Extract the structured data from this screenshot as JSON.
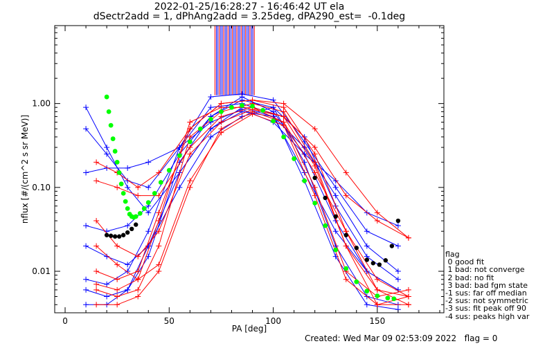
{
  "header": {
    "title_line1": "2022-01-25/16:28:27 - 16:46:42 UT ela",
    "title_line2": "dSectr2add = 1, dPhAng2add = 3.25deg, dPA290_est=  -0.1deg"
  },
  "legend": {
    "heading": "flag",
    "items": [
      " 0 good fit",
      " 1 bad: not converge",
      " 2 bad: no fit",
      " 3 bad: bad fgm state",
      "-1 sus: far off median",
      "-2 sus: not symmetric",
      "-3 sus: fit peak off 90",
      "-4 sus: peaks high var"
    ]
  },
  "footer": {
    "created": "Created: Wed Mar 09 02:53:09 2022",
    "flag": "flag = 0"
  },
  "colors": {
    "series_red": "#ff0000",
    "series_blue": "#0000ff",
    "fit_green": "#00ff00",
    "fit_black": "#000000"
  },
  "chart_data": {
    "type": "line",
    "xlabel": "PA [deg]",
    "ylabel": "nflux [#/(cm^2 s sr MeV)]",
    "xlim": [
      -5,
      182
    ],
    "ylim": [
      0.0032,
      8.5
    ],
    "yscale": "log",
    "xticks": [
      0,
      50,
      100,
      150
    ],
    "xtick_labels": [
      "0",
      "50",
      "100",
      "150"
    ],
    "yticks": [
      0.01,
      0.1,
      1.0
    ],
    "ytick_labels": [
      "0.01",
      "0.10",
      "1.00"
    ],
    "shaded_pa_range": [
      72,
      91
    ],
    "series": [
      {
        "color": "blue",
        "x": [
          10,
          20,
          30,
          40,
          55,
          70,
          85,
          100,
          115,
          130,
          145,
          160
        ],
        "y": [
          0.15,
          0.17,
          0.17,
          0.2,
          0.3,
          0.6,
          0.85,
          0.6,
          0.25,
          0.12,
          0.05,
          0.035
        ]
      },
      {
        "color": "blue",
        "x": [
          10,
          20,
          30,
          40,
          55,
          70,
          85,
          100,
          115,
          130,
          145,
          160
        ],
        "y": [
          0.02,
          0.015,
          0.012,
          0.02,
          0.15,
          0.5,
          0.9,
          0.7,
          0.15,
          0.03,
          0.01,
          0.006
        ]
      },
      {
        "color": "blue",
        "x": [
          10,
          20,
          30,
          40,
          55,
          70,
          85,
          100,
          115,
          130,
          145,
          160
        ],
        "y": [
          0.006,
          0.005,
          0.006,
          0.015,
          0.2,
          0.7,
          1.1,
          0.9,
          0.2,
          0.02,
          0.005,
          0.004
        ]
      },
      {
        "color": "blue",
        "x": [
          10,
          20,
          30,
          40,
          55,
          70,
          85,
          100,
          115,
          130,
          145,
          160
        ],
        "y": [
          0.9,
          0.3,
          0.1,
          0.05,
          0.15,
          0.5,
          0.8,
          0.7,
          0.3,
          0.08,
          0.02,
          0.01
        ]
      },
      {
        "color": "blue",
        "x": [
          10,
          20,
          30,
          40,
          55,
          70,
          85,
          100,
          115,
          130,
          145,
          160
        ],
        "y": [
          0.035,
          0.03,
          0.035,
          0.06,
          0.25,
          0.7,
          1.2,
          0.8,
          0.25,
          0.04,
          0.01,
          0.006
        ]
      },
      {
        "color": "blue",
        "x": [
          10,
          20,
          30,
          40,
          55,
          70,
          85,
          100,
          115,
          130,
          145,
          160
        ],
        "y": [
          0.008,
          0.007,
          0.01,
          0.03,
          0.3,
          0.9,
          1.0,
          0.75,
          0.12,
          0.015,
          0.004,
          0.0035
        ]
      },
      {
        "color": "blue",
        "x": [
          10,
          20,
          30,
          40,
          55,
          70,
          85,
          100,
          115,
          130,
          145,
          160
        ],
        "y": [
          0.004,
          0.004,
          0.006,
          0.02,
          0.1,
          0.4,
          0.7,
          0.9,
          0.4,
          0.06,
          0.015,
          0.008
        ]
      },
      {
        "color": "blue",
        "x": [
          10,
          20,
          30,
          40,
          55,
          70,
          85,
          100,
          115,
          130,
          145,
          160
        ],
        "y": [
          0.5,
          0.25,
          0.12,
          0.1,
          0.3,
          1.2,
          1.3,
          1.1,
          0.35,
          0.1,
          0.03,
          0.02
        ]
      },
      {
        "color": "red",
        "x": [
          15,
          25,
          35,
          45,
          60,
          75,
          90,
          105,
          120,
          135,
          150,
          165
        ],
        "y": [
          0.12,
          0.1,
          0.08,
          0.08,
          0.3,
          0.7,
          0.9,
          0.6,
          0.15,
          0.03,
          0.008,
          0.005
        ]
      },
      {
        "color": "red",
        "x": [
          15,
          25,
          35,
          45,
          60,
          75,
          90,
          105,
          120,
          135,
          150,
          165
        ],
        "y": [
          0.006,
          0.005,
          0.006,
          0.02,
          0.4,
          0.8,
          1.0,
          0.8,
          0.2,
          0.02,
          0.004,
          0.004
        ]
      },
      {
        "color": "red",
        "x": [
          15,
          25,
          35,
          45,
          60,
          75,
          90,
          105,
          120,
          135,
          150,
          165
        ],
        "y": [
          0.04,
          0.02,
          0.015,
          0.03,
          0.25,
          0.6,
          0.85,
          0.7,
          0.3,
          0.08,
          0.04,
          0.025
        ]
      },
      {
        "color": "red",
        "x": [
          15,
          25,
          35,
          45,
          60,
          75,
          90,
          105,
          120,
          135,
          150,
          165
        ],
        "y": [
          0.01,
          0.008,
          0.01,
          0.05,
          0.5,
          1.0,
          1.1,
          0.9,
          0.25,
          0.03,
          0.006,
          0.004
        ]
      },
      {
        "color": "red",
        "x": [
          15,
          25,
          35,
          45,
          60,
          75,
          90,
          105,
          120,
          135,
          150,
          165
        ],
        "y": [
          0.004,
          0.004,
          0.005,
          0.01,
          0.1,
          0.5,
          0.8,
          0.6,
          0.1,
          0.01,
          0.005,
          0.006
        ]
      },
      {
        "color": "red",
        "x": [
          15,
          25,
          35,
          45,
          60,
          75,
          90,
          105,
          120,
          135,
          150,
          165
        ],
        "y": [
          0.2,
          0.15,
          0.1,
          0.15,
          0.5,
          1.0,
          1.1,
          1.0,
          0.5,
          0.15,
          0.05,
          0.025
        ]
      },
      {
        "color": "red",
        "x": [
          15,
          25,
          35,
          45,
          60,
          75,
          90,
          105,
          120,
          135,
          150,
          165
        ],
        "y": [
          0.02,
          0.012,
          0.008,
          0.012,
          0.12,
          0.45,
          0.75,
          0.55,
          0.08,
          0.008,
          0.004,
          0.005
        ]
      },
      {
        "color": "red",
        "x": [
          15,
          25,
          35,
          45,
          60,
          75,
          90,
          105,
          120,
          135,
          150,
          165
        ],
        "y": [
          0.007,
          0.006,
          0.008,
          0.04,
          0.6,
          0.9,
          0.9,
          0.7,
          0.18,
          0.02,
          0.006,
          0.005
        ]
      }
    ],
    "fit_black": {
      "x": [
        20,
        22,
        24,
        26,
        28,
        30,
        32,
        34,
        120,
        125,
        130,
        135,
        140,
        145,
        148,
        151,
        154,
        157,
        160
      ],
      "y": [
        0.027,
        0.0265,
        0.026,
        0.026,
        0.027,
        0.029,
        0.032,
        0.036,
        0.13,
        0.075,
        0.045,
        0.027,
        0.019,
        0.0137,
        0.0125,
        0.012,
        0.0135,
        0.02,
        0.04
      ]
    },
    "fit_green": {
      "x": [
        20,
        21,
        22,
        23,
        24,
        25,
        26,
        27,
        28,
        29,
        30,
        31,
        32,
        33,
        34,
        36,
        38,
        40,
        43,
        46,
        50,
        55,
        60,
        65,
        70,
        75,
        80,
        85,
        90,
        95,
        100,
        105,
        110,
        115,
        120,
        125,
        130,
        135,
        140,
        145,
        150,
        155,
        158
      ],
      "y": [
        1.2,
        0.8,
        0.55,
        0.38,
        0.27,
        0.2,
        0.15,
        0.11,
        0.085,
        0.068,
        0.056,
        0.048,
        0.045,
        0.044,
        0.045,
        0.049,
        0.056,
        0.066,
        0.085,
        0.115,
        0.16,
        0.24,
        0.35,
        0.5,
        0.65,
        0.8,
        0.9,
        0.95,
        0.93,
        0.83,
        0.62,
        0.4,
        0.22,
        0.12,
        0.065,
        0.035,
        0.018,
        0.0108,
        0.0075,
        0.0058,
        0.0051,
        0.0048,
        0.0047
      ]
    }
  }
}
